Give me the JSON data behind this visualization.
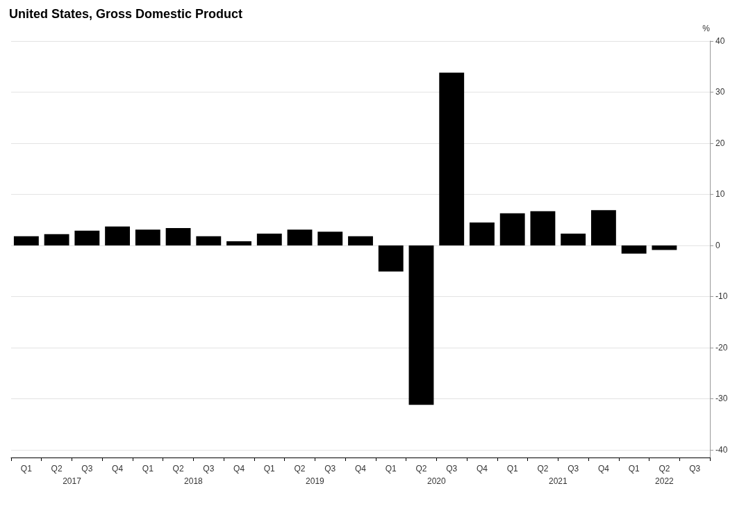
{
  "chart_data": {
    "type": "bar",
    "title": "United States, Gross Domestic Product",
    "ylabel": "%",
    "categories": [
      "Q1",
      "Q2",
      "Q3",
      "Q4",
      "Q1",
      "Q2",
      "Q3",
      "Q4",
      "Q1",
      "Q2",
      "Q3",
      "Q4",
      "Q1",
      "Q2",
      "Q3",
      "Q4",
      "Q1",
      "Q2",
      "Q3",
      "Q4",
      "Q1",
      "Q2",
      "Q3"
    ],
    "values": [
      1.8,
      2.2,
      2.9,
      3.7,
      3.1,
      3.4,
      1.8,
      0.8,
      2.3,
      3.1,
      2.7,
      1.8,
      -5.1,
      -31.2,
      33.8,
      4.5,
      6.3,
      6.7,
      2.3,
      6.9,
      -1.6,
      -0.9,
      null
    ],
    "color": "#000000",
    "annotations": [
      "2017",
      "2018",
      "2019",
      "2020",
      "2021",
      "2022"
    ],
    "ylim": [
      -41.5,
      40
    ],
    "yticks": [
      -40,
      -30,
      -20,
      -10,
      0,
      10,
      20,
      30,
      40
    ],
    "grid": "y"
  }
}
